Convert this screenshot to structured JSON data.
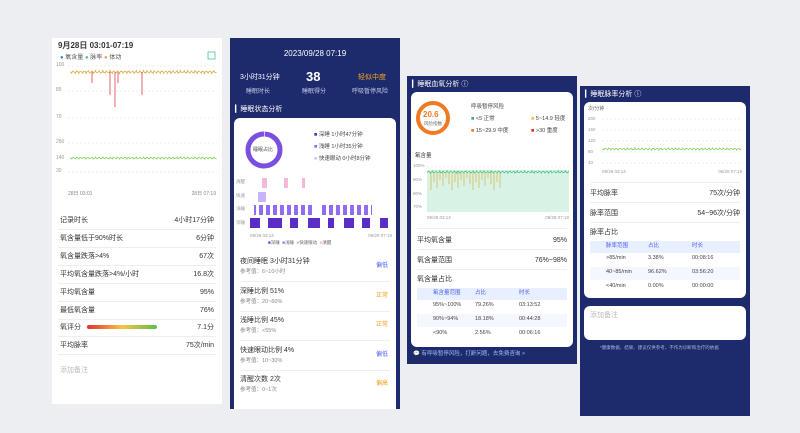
{
  "panel1": {
    "header": "9月28日 03:01-07:19",
    "legend": [
      "氧含量",
      "脉率",
      "体动"
    ],
    "chart1_yticks": [
      "100",
      "85",
      "70"
    ],
    "chart2_yticks": [
      "250",
      "140",
      "30"
    ],
    "xlabels": [
      "28日 03:01",
      "28日 07:19"
    ],
    "rows": [
      [
        "记录时长",
        "4小时17分钟"
      ],
      [
        "氧含量低于90%时长",
        "6分钟"
      ],
      [
        "氧含量跌落>4%",
        "67次"
      ],
      [
        "平均氧含量跌落>4%/小时",
        "16.8次"
      ],
      [
        "平均氧含量",
        "95%"
      ],
      [
        "最低氧含量",
        "76%"
      ],
      [
        "氧评分",
        "7.1分"
      ],
      [
        "平均脉率",
        "75次/min"
      ]
    ],
    "note": "添加备注"
  },
  "panel2": {
    "date": "2023/09/28 07:19",
    "stats": [
      [
        "3小时31分钟",
        "睡眠时长"
      ],
      [
        "38",
        "睡眠得分"
      ],
      [
        "轻似中度",
        "呼吸暂停风险"
      ]
    ],
    "section": "睡眠状态分析",
    "donut": "睡眠占比",
    "donut_legend": [
      "深睡 1小时47分钟",
      "浅睡 1小时35分钟",
      "快速眼动 0小时8分钟"
    ],
    "stage_labels": [
      "清醒",
      "快速",
      "浅睡",
      "深睡"
    ],
    "xlabels": [
      "09/28 03:14",
      "09/28 07:19"
    ],
    "stage_legend": [
      "深睡",
      "浅睡",
      "快速眼动",
      "清醒"
    ],
    "rows": [
      [
        "夜间睡眠 3小时31分钟",
        "参考值：6~10小时",
        "偏低"
      ],
      [
        "深睡比例 51%",
        "参考值：20~60%",
        "正常"
      ],
      [
        "浅睡比例 45%",
        "参考值：<55%",
        "正常"
      ],
      [
        "快速眼动比例 4%",
        "参考值：10~30%",
        "偏低"
      ],
      [
        "清醒次数 2次",
        "参考值：0~1次",
        "偏高"
      ]
    ]
  },
  "panel3": {
    "title": "睡眠血氧分析",
    "risk_value": "20.6",
    "risk_label": "风险指数",
    "risk_title": "呼吸暂停风险",
    "risk_legend": [
      "<5 正常",
      "5~14.9 轻度",
      "15~29.9 中度",
      ">30 重度"
    ],
    "chart_label": "氧含量",
    "yticks": [
      "100%",
      "90%",
      "80%",
      "70%"
    ],
    "xlabels": [
      "09/28 03:14",
      "09/28 07:19"
    ],
    "avg": [
      "平均氧含量",
      "95%"
    ],
    "range": [
      "氧含量范围",
      "76%~98%"
    ],
    "share": "氧含量占比",
    "table": {
      "header": [
        "氧含量范围",
        "占比",
        "时长"
      ],
      "rows": [
        [
          "95%~100%",
          "79.26%",
          "03:13:52"
        ],
        [
          "90%~94%",
          "18.18%",
          "00:44:28"
        ],
        [
          "<90%",
          "2.56%",
          "00:06:16"
        ]
      ]
    },
    "footer": "有呼吸暂停风险，打鼾问题，去免费咨询 >"
  },
  "panel4": {
    "title": "睡眠脉率分析",
    "unit": "次/分钟",
    "yticks": [
      "200",
      "160",
      "120",
      "80",
      "40"
    ],
    "xlabels": [
      "09/28 03:14",
      "09/28 07:19"
    ],
    "avg": [
      "平均脉率",
      "75次/分钟"
    ],
    "range": [
      "脉率范围",
      "54~96次/分钟"
    ],
    "share": "脉率占比",
    "table": {
      "header": [
        "脉率范围",
        "占比",
        "时长"
      ],
      "rows": [
        [
          ">85/min",
          "3.38%",
          "00:08:16"
        ],
        [
          "40~85/min",
          "96.62%",
          "03:56:20"
        ],
        [
          "<40/min",
          "0.00%",
          "00:00:00"
        ]
      ]
    },
    "note": "添加备注",
    "footer": "*健康数据、结果、建议仅供参考，不作为诊断和治疗的依据"
  }
}
